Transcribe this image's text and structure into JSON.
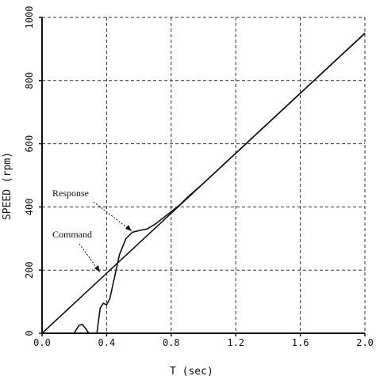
{
  "chart_data": {
    "type": "line",
    "xlabel": "T (sec)",
    "ylabel": "SPEED (rpm)",
    "xlim": [
      0,
      2.0
    ],
    "ylim": [
      0,
      1000
    ],
    "x_ticks": [
      "0.0",
      "0.4",
      "0.8",
      "1.2",
      "1.6",
      "2.0"
    ],
    "y_ticks": [
      "0",
      "200",
      "400",
      "600",
      "800",
      "1000"
    ],
    "grid": true,
    "series": [
      {
        "name": "Command",
        "x": [
          0.0,
          2.0
        ],
        "y": [
          0,
          950
        ]
      },
      {
        "name": "Response",
        "x": [
          0.0,
          0.2,
          0.21,
          0.23,
          0.25,
          0.27,
          0.29,
          0.34,
          0.35,
          0.36,
          0.38,
          0.4,
          0.42,
          0.45,
          0.48,
          0.52,
          0.56,
          0.6,
          0.65,
          0.7,
          0.75,
          0.8,
          0.85,
          0.9,
          1.0,
          1.2,
          1.6,
          2.0
        ],
        "y": [
          0,
          0,
          10,
          25,
          28,
          15,
          0,
          0,
          40,
          80,
          95,
          90,
          110,
          180,
          250,
          300,
          320,
          325,
          330,
          345,
          365,
          385,
          405,
          430,
          475,
          570,
          760,
          950
        ]
      }
    ],
    "annotations": [
      {
        "text": "Response"
      },
      {
        "text": "Command"
      }
    ]
  }
}
